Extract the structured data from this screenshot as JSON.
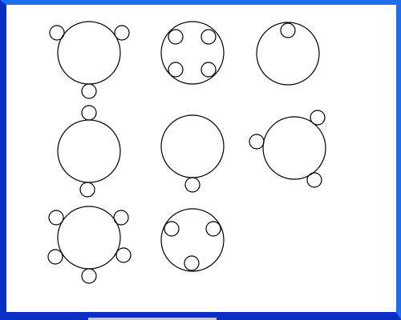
{
  "colors": {
    "frame_light": "#1e6ff0",
    "frame_dark": "#0b2fc4",
    "background": "#ffffff",
    "stroke": "#000000"
  },
  "figures": [
    {
      "name": "figure-1",
      "satellite_count": 3
    },
    {
      "name": "figure-2",
      "satellite_count": 4
    },
    {
      "name": "figure-3",
      "satellite_count": 1
    },
    {
      "name": "figure-4",
      "satellite_count": 2
    },
    {
      "name": "figure-5",
      "satellite_count": 1
    },
    {
      "name": "figure-6",
      "satellite_count": 3
    },
    {
      "name": "figure-7",
      "satellite_count": 5
    },
    {
      "name": "figure-8",
      "satellite_count": 3
    }
  ]
}
